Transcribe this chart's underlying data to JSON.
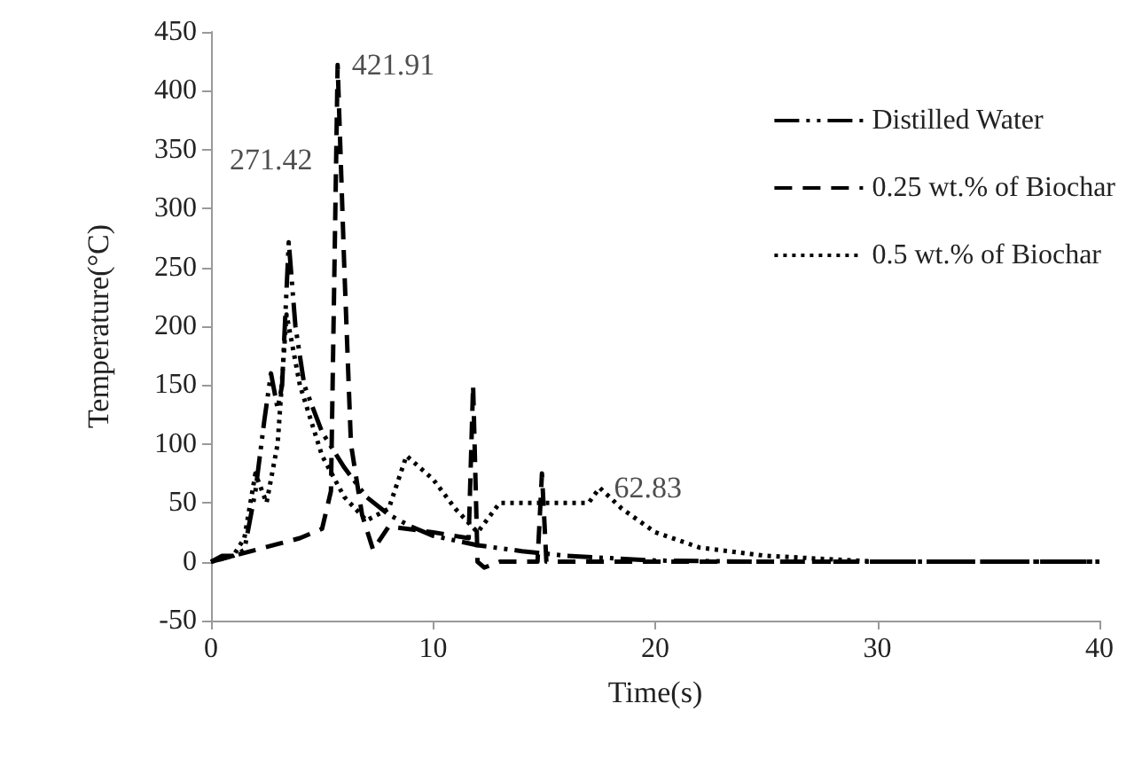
{
  "chart_data": {
    "type": "line",
    "xlabel": "Time(s)",
    "ylabel": "Temperature(°C)",
    "xlim": [
      0,
      40
    ],
    "xticks": [
      0,
      10,
      20,
      30,
      40
    ],
    "ylim": [
      -50,
      450
    ],
    "yticks": [
      -50,
      0,
      50,
      100,
      150,
      200,
      250,
      300,
      350,
      400,
      450
    ],
    "grid": false,
    "legend": "top right",
    "marker": "none",
    "annotations": [
      {
        "text": "271.42",
        "x": 3.5,
        "y": 271.42
      },
      {
        "text": "421.91",
        "x": 5.7,
        "y": 421.91
      },
      {
        "text": "62.83",
        "x": 17.5,
        "y": 62.83
      }
    ],
    "series": [
      {
        "name": "Distilled Water",
        "color": "#000000",
        "line_style": "dashdot",
        "x": [
          0,
          0.5,
          1,
          1.5,
          2,
          2.4,
          2.7,
          3,
          3.2,
          3.5,
          3.8,
          4.2,
          5,
          6,
          7,
          8,
          9,
          10,
          12,
          14,
          16,
          18,
          20,
          25,
          30,
          40
        ],
        "values": [
          0,
          5,
          5,
          10,
          60,
          120,
          160,
          130,
          150,
          271.42,
          200,
          150,
          110,
          80,
          55,
          40,
          30,
          22,
          14,
          9,
          5,
          3,
          1,
          0,
          0,
          0
        ]
      },
      {
        "name": "0.25 wt.% of Biochar",
        "color": "#000000",
        "line_style": "dashed",
        "x": [
          0,
          1,
          2,
          3,
          4,
          5,
          5.4,
          5.7,
          6,
          6.3,
          6.8,
          7.3,
          8,
          10,
          11.6,
          11.8,
          12,
          12.3,
          13,
          14.7,
          14.9,
          15.1,
          16,
          20,
          25,
          30,
          40
        ],
        "values": [
          0,
          5,
          10,
          15,
          20,
          28,
          60,
          421.91,
          250,
          100,
          40,
          10,
          30,
          25,
          20,
          150,
          0,
          -5,
          0,
          0,
          75,
          0,
          0,
          0,
          0,
          0,
          0
        ]
      },
      {
        "name": "0.5 wt.% of Biochar",
        "color": "#000000",
        "line_style": "dotted",
        "x": [
          0,
          1,
          1.5,
          2,
          2.5,
          3,
          3.4,
          4,
          5,
          6,
          7,
          8,
          8.8,
          10,
          11,
          12,
          13,
          15,
          17,
          17.5,
          18.5,
          20,
          22,
          25,
          28,
          30,
          40
        ],
        "values": [
          0,
          5,
          20,
          75,
          50,
          100,
          210,
          150,
          90,
          55,
          35,
          45,
          90,
          70,
          45,
          25,
          50,
          50,
          50,
          62.83,
          45,
          25,
          12,
          5,
          2,
          0,
          0
        ]
      }
    ]
  }
}
